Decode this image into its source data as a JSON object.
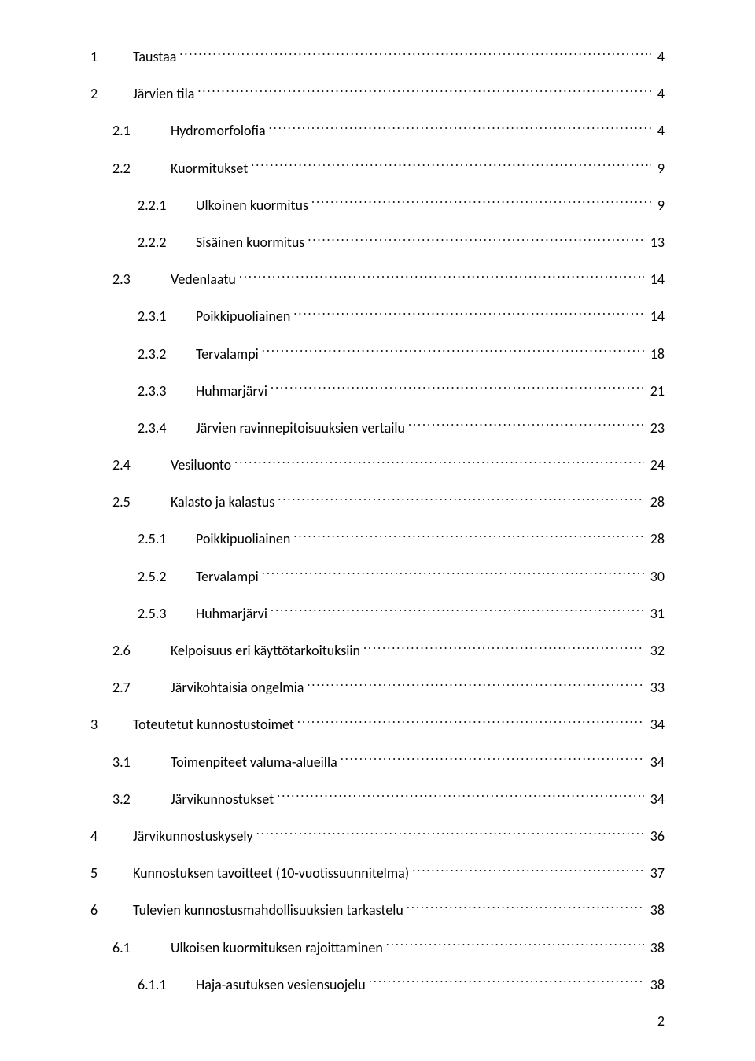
{
  "pageNumber": "2",
  "entries": [
    {
      "level": 0,
      "num": "1",
      "title": "Taustaa",
      "page": "4"
    },
    {
      "level": 0,
      "num": "2",
      "title": "Järvien tila",
      "page": "4"
    },
    {
      "level": 1,
      "num": "2.1",
      "title": "Hydromorfolofia",
      "page": "4"
    },
    {
      "level": 1,
      "num": "2.2",
      "title": "Kuormitukset",
      "page": "9"
    },
    {
      "level": 2,
      "num": "2.2.1",
      "title": "Ulkoinen kuormitus",
      "page": "9"
    },
    {
      "level": 2,
      "num": "2.2.2",
      "title": "Sisäinen kuormitus",
      "page": "13"
    },
    {
      "level": 1,
      "num": "2.3",
      "title": "Vedenlaatu",
      "page": "14"
    },
    {
      "level": 2,
      "num": "2.3.1",
      "title": "Poikkipuoliainen",
      "page": "14"
    },
    {
      "level": 2,
      "num": "2.3.2",
      "title": "Tervalampi",
      "page": "18"
    },
    {
      "level": 2,
      "num": "2.3.3",
      "title": "Huhmarjärvi",
      "page": "21"
    },
    {
      "level": 2,
      "num": "2.3.4",
      "title": "Järvien ravinnepitoisuuksien vertailu",
      "page": "23"
    },
    {
      "level": 1,
      "num": "2.4",
      "title": "Vesiluonto",
      "page": "24"
    },
    {
      "level": 1,
      "num": "2.5",
      "title": "Kalasto ja kalastus",
      "page": "28"
    },
    {
      "level": 2,
      "num": "2.5.1",
      "title": "Poikkipuoliainen",
      "page": "28"
    },
    {
      "level": 2,
      "num": "2.5.2",
      "title": "Tervalampi",
      "page": "30"
    },
    {
      "level": 2,
      "num": "2.5.3",
      "title": "Huhmarjärvi",
      "page": "31"
    },
    {
      "level": 1,
      "num": "2.6",
      "title": "Kelpoisuus eri käyttötarkoituksiin",
      "page": "32"
    },
    {
      "level": 1,
      "num": "2.7",
      "title": "Järvikohtaisia ongelmia",
      "page": "33"
    },
    {
      "level": 0,
      "num": "3",
      "title": "Toteutetut kunnostustoimet",
      "page": "34"
    },
    {
      "level": 1,
      "num": "3.1",
      "title": "Toimenpiteet valuma-alueilla",
      "page": "34"
    },
    {
      "level": 1,
      "num": "3.2",
      "title": "Järvikunnostukset",
      "page": "34"
    },
    {
      "level": 0,
      "num": "4",
      "title": "Järvikunnostuskysely",
      "page": "36"
    },
    {
      "level": 0,
      "num": "5",
      "title": "Kunnostuksen tavoitteet (10-vuotissuunnitelma)",
      "page": "37"
    },
    {
      "level": 0,
      "num": "6",
      "title": "Tulevien kunnostusmahdollisuuksien tarkastelu",
      "page": "38"
    },
    {
      "level": 1,
      "num": "6.1",
      "title": "Ulkoisen kuormituksen rajoittaminen",
      "page": "38"
    },
    {
      "level": 2,
      "num": "6.1.1",
      "title": "Haja-asutuksen vesiensuojelu",
      "page": "38"
    }
  ]
}
